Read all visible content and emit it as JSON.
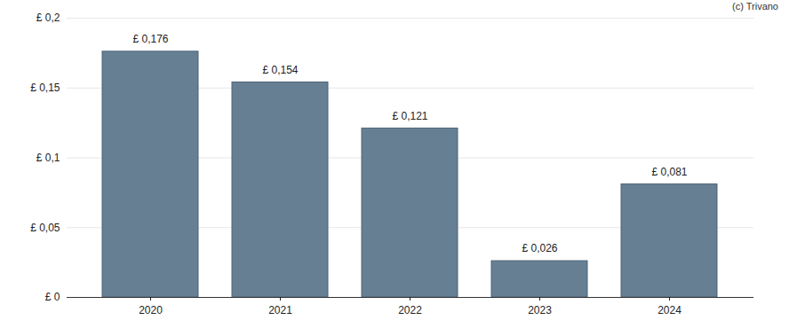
{
  "chart_data": {
    "type": "bar",
    "annotations": [
      {
        "text": "(c) Trivano"
      }
    ],
    "categories": [
      "2020",
      "2021",
      "2022",
      "2023",
      "2024"
    ],
    "values": [
      0.176,
      0.154,
      0.121,
      0.026,
      0.081
    ],
    "value_labels": [
      "£ 0,176",
      "£ 0,154",
      "£ 0,121",
      "£ 0,026",
      "£ 0,081"
    ],
    "data_labels": true,
    "color": "#667f93",
    "ylim": [
      0,
      0.2
    ],
    "yticks": [
      {
        "value": 0,
        "label": "£ 0"
      },
      {
        "value": 0.05,
        "label": "£ 0,05"
      },
      {
        "value": 0.1,
        "label": "£ 0,1"
      },
      {
        "value": 0.15,
        "label": "£ 0,15"
      },
      {
        "value": 0.2,
        "label": "£ 0,2"
      }
    ],
    "grid": true
  }
}
